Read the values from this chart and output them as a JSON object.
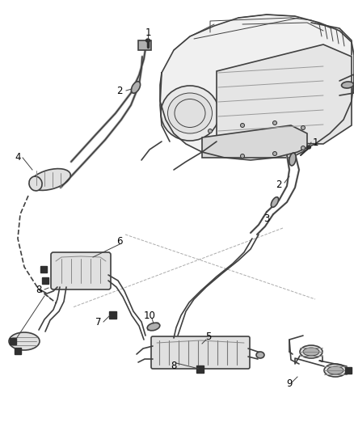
{
  "bg_color": "#ffffff",
  "line_color": "#404040",
  "dark_color": "#303030",
  "gray_fill": "#c8c8c8",
  "light_gray": "#e0e0e0",
  "mid_gray": "#b0b0b0",
  "figsize": [
    4.38,
    5.33
  ],
  "dpi": 100,
  "lw_pipe": 1.8,
  "lw_main": 1.2,
  "lw_thin": 0.7,
  "lw_dash": 0.9
}
